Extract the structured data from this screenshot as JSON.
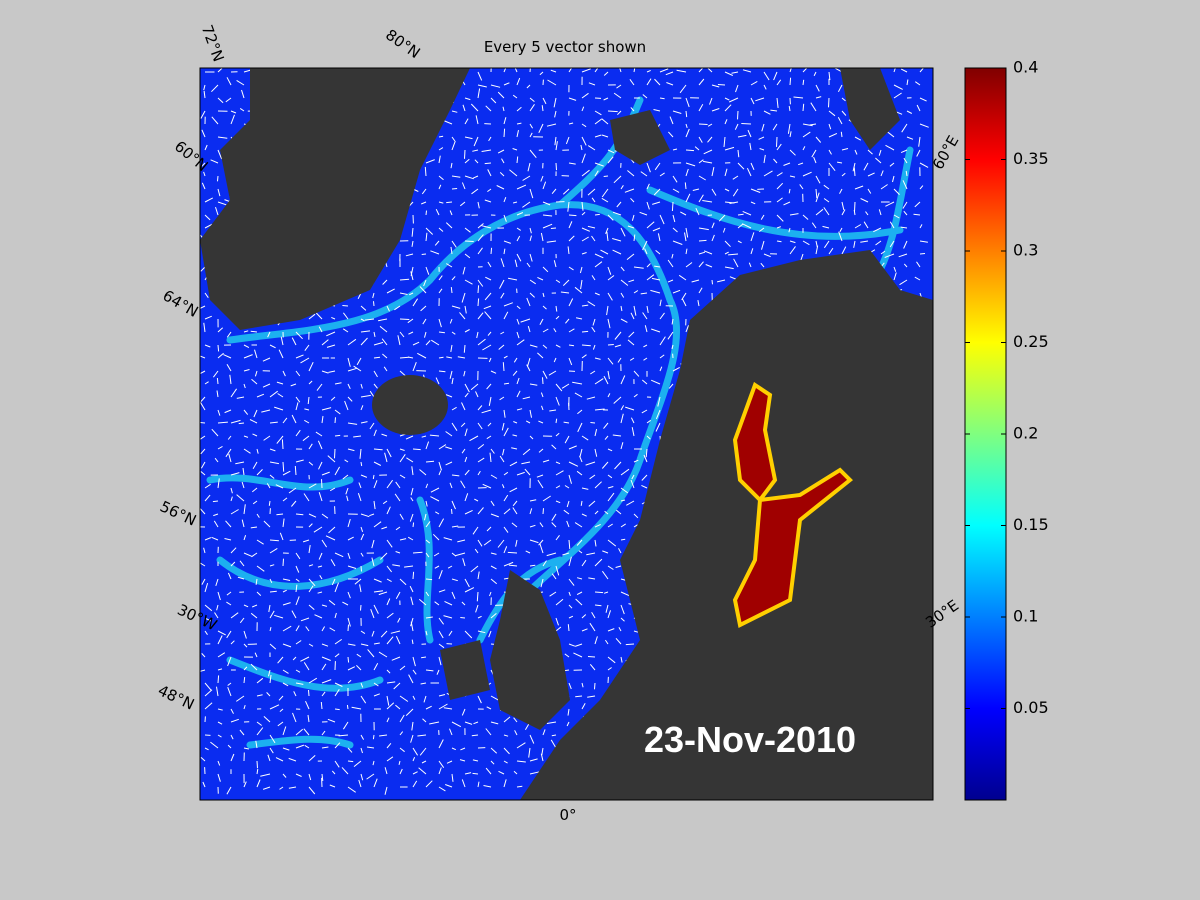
{
  "title": "Every 5 vector shown",
  "date_label": "23-Nov-2010",
  "grid_labels": [
    "72°N",
    "80°N",
    "60°N",
    "64°N",
    "56°N",
    "30°W",
    "48°N",
    "0°",
    "30°E",
    "60°E"
  ],
  "colorbar": {
    "lim": [
      0,
      0.4
    ],
    "ticks": [
      0.05,
      0.1,
      0.15,
      0.2,
      0.25,
      0.3,
      0.35,
      0.4
    ]
  }
}
